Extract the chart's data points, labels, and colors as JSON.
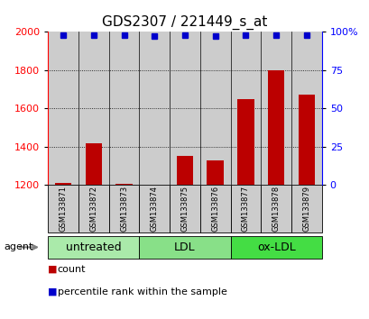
{
  "title": "GDS2307 / 221449_s_at",
  "samples": [
    "GSM133871",
    "GSM133872",
    "GSM133873",
    "GSM133874",
    "GSM133875",
    "GSM133876",
    "GSM133877",
    "GSM133878",
    "GSM133879"
  ],
  "counts": [
    1210,
    1420,
    1205,
    1195,
    1350,
    1330,
    1650,
    1800,
    1670
  ],
  "percentiles": [
    98,
    98,
    98,
    97,
    98,
    97,
    98,
    98,
    98
  ],
  "ylim_left": [
    1200,
    2000
  ],
  "ylim_right": [
    0,
    100
  ],
  "yticks_left": [
    1200,
    1400,
    1600,
    1800,
    2000
  ],
  "yticks_right": [
    0,
    25,
    50,
    75,
    100
  ],
  "groups": [
    {
      "label": "untreated",
      "indices": [
        0,
        1,
        2
      ],
      "color": "#aaeaaa"
    },
    {
      "label": "LDL",
      "indices": [
        3,
        4,
        5
      ],
      "color": "#88e088"
    },
    {
      "label": "ox-LDL",
      "indices": [
        6,
        7,
        8
      ],
      "color": "#44dd44"
    }
  ],
  "bar_color": "#bb0000",
  "dot_color": "#0000cc",
  "bar_width": 0.55,
  "background_color": "#ffffff",
  "sample_bg_color": "#cccccc",
  "title_fontsize": 11,
  "tick_fontsize": 8,
  "sample_fontsize": 6,
  "group_fontsize": 9,
  "legend_fontsize": 8
}
